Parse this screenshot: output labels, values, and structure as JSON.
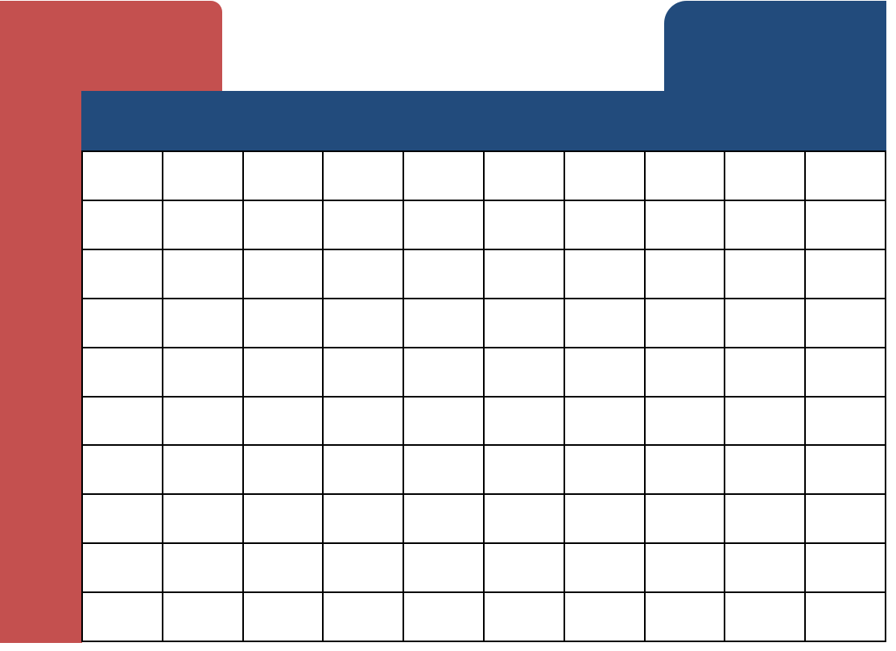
{
  "colors": {
    "red_accent": "#c4504f",
    "blue_accent": "#224b7c",
    "grid_line": "#000000",
    "background": "#ffffff"
  },
  "grid": {
    "rows": 10,
    "columns": 10
  }
}
